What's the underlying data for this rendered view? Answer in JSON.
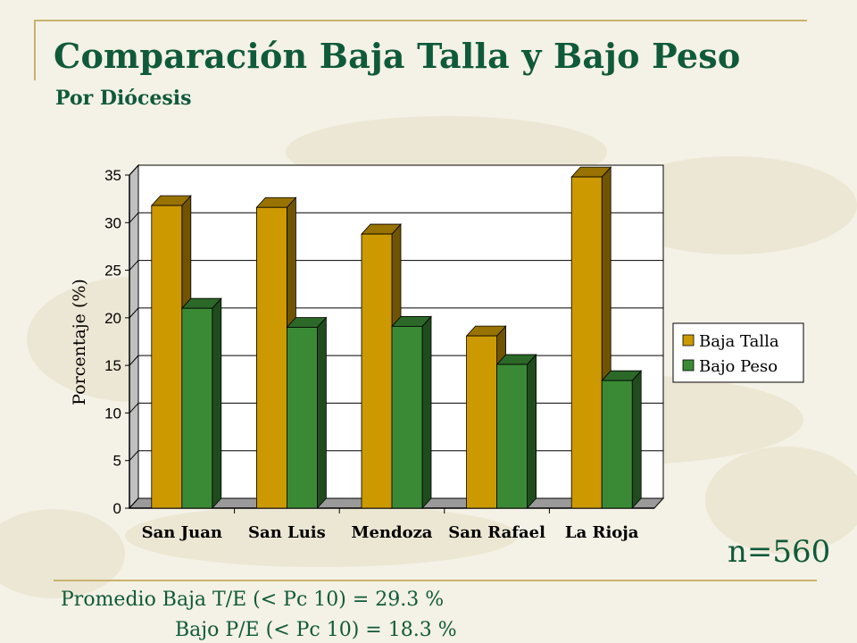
{
  "slide": {
    "title": "Comparación Baja Talla y Bajo Peso",
    "subtitle": "Por  Diócesis",
    "n_label": "n=560",
    "stat_line_1": "Promedio Baja T/E (< Pc 10) = 29.3 %",
    "stat_line_2": "Bajo P/E (< Pc 10) = 18.3 %"
  },
  "colors": {
    "title": "#0f5a3a",
    "baja_talla": "#cc9900",
    "bajo_peso": "#3a8a35",
    "rule": "#c9b26c",
    "background": "#f4f1e6"
  },
  "chart_data": {
    "type": "bar",
    "categories": [
      "San Juan",
      "San Luis",
      "Mendoza",
      "San Rafael",
      "La Rioja"
    ],
    "series": [
      {
        "name": "Baja Talla",
        "values": [
          31.8,
          31.6,
          28.8,
          18.1,
          34.8
        ]
      },
      {
        "name": "Bajo Peso",
        "values": [
          21.0,
          19.0,
          19.1,
          15.1,
          13.4
        ]
      }
    ],
    "ylabel": "Porcentaje (%)",
    "xlabel": "",
    "ylim": [
      0,
      35
    ],
    "yticks": [
      "0",
      "5",
      "10",
      "15",
      "20",
      "25",
      "30",
      "35"
    ],
    "grid": true,
    "legend": "right",
    "style": "3d"
  }
}
